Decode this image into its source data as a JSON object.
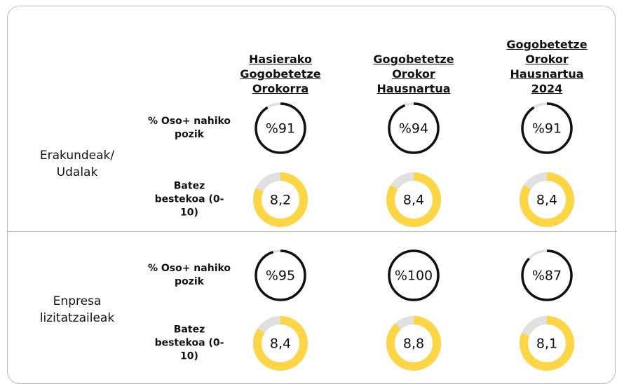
{
  "columns": [
    "Hasierako Gogobetetze Orokorra",
    "Gogobetetze Orokor Hausnartua",
    "Gogobetetze Orokor Hausnartua 2024"
  ],
  "groups": [
    {
      "label": "Erakundeak/ Udalak",
      "rows": [
        {
          "label": "% Oso+ nahiko pozik",
          "range": [
            0,
            100
          ],
          "values": [
            91,
            94,
            91
          ],
          "value_labels": [
            "%91",
            "%94",
            "%91"
          ]
        },
        {
          "label": "Batez bestekoa (0-10)",
          "range": [
            0,
            10
          ],
          "values": [
            8.2,
            8.4,
            8.4
          ],
          "value_labels": [
            "8,2",
            "8,4",
            "8,4"
          ]
        }
      ]
    },
    {
      "label": "Enpresa lizitatzaileak",
      "rows": [
        {
          "label": "% Oso+ nahiko pozik",
          "range": [
            0,
            100
          ],
          "values": [
            95,
            100,
            87
          ],
          "value_labels": [
            "%95",
            "%100",
            "%87"
          ]
        },
        {
          "label": "Batez bestekoa (0-10)",
          "range": [
            0,
            10
          ],
          "values": [
            8.4,
            8.8,
            8.1
          ],
          "value_labels": [
            "8,4",
            "8,8",
            "8,1"
          ]
        }
      ]
    }
  ]
}
